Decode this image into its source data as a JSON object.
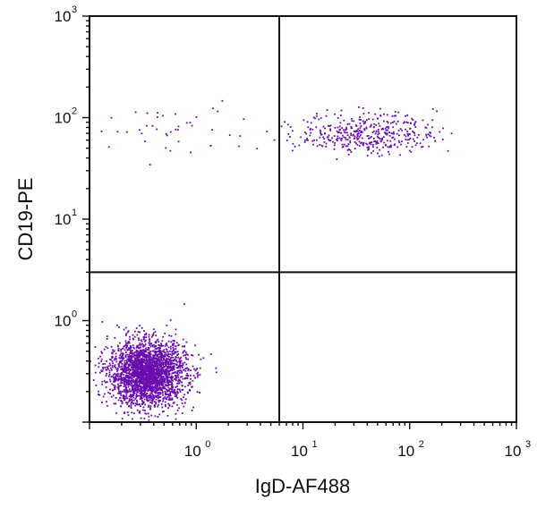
{
  "chart_data": {
    "type": "scatter",
    "title": "",
    "xlabel": "IgD-AF488",
    "ylabel": "CD19-PE",
    "x_scale": "log",
    "y_scale": "log",
    "xlim": [
      0.1,
      1000
    ],
    "ylim": [
      0.1,
      1000
    ],
    "x_ticks": [
      {
        "value": 1,
        "base": "10",
        "exp": "0"
      },
      {
        "value": 10,
        "base": "10",
        "exp": "1"
      },
      {
        "value": 100,
        "base": "10",
        "exp": "2"
      },
      {
        "value": 1000,
        "base": "10",
        "exp": "3"
      }
    ],
    "y_ticks": [
      {
        "value": 1,
        "base": "10",
        "exp": "0"
      },
      {
        "value": 10,
        "base": "10",
        "exp": "1"
      },
      {
        "value": 100,
        "base": "10",
        "exp": "2"
      },
      {
        "value": 1000,
        "base": "10",
        "exp": "3"
      }
    ],
    "gate": {
      "x": 6,
      "y": 3
    },
    "grid": false,
    "legend": "none",
    "point_color": "#6a0dad",
    "populations": [
      {
        "location": "lower-left",
        "shape": "dense cluster",
        "center": [
          0.35,
          0.3
        ],
        "spread_log10": [
          0.18,
          0.16
        ],
        "approx_points": 2600
      },
      {
        "location": "upper-right",
        "shape": "elongated cluster",
        "center": [
          40,
          70
        ],
        "spread_log10": [
          0.32,
          0.1
        ],
        "approx_points": 420
      },
      {
        "location": "upper-left",
        "shape": "sparse scatter",
        "center": [
          0.5,
          75
        ],
        "spread_log10": [
          0.45,
          0.14
        ],
        "approx_points": 45
      }
    ]
  }
}
